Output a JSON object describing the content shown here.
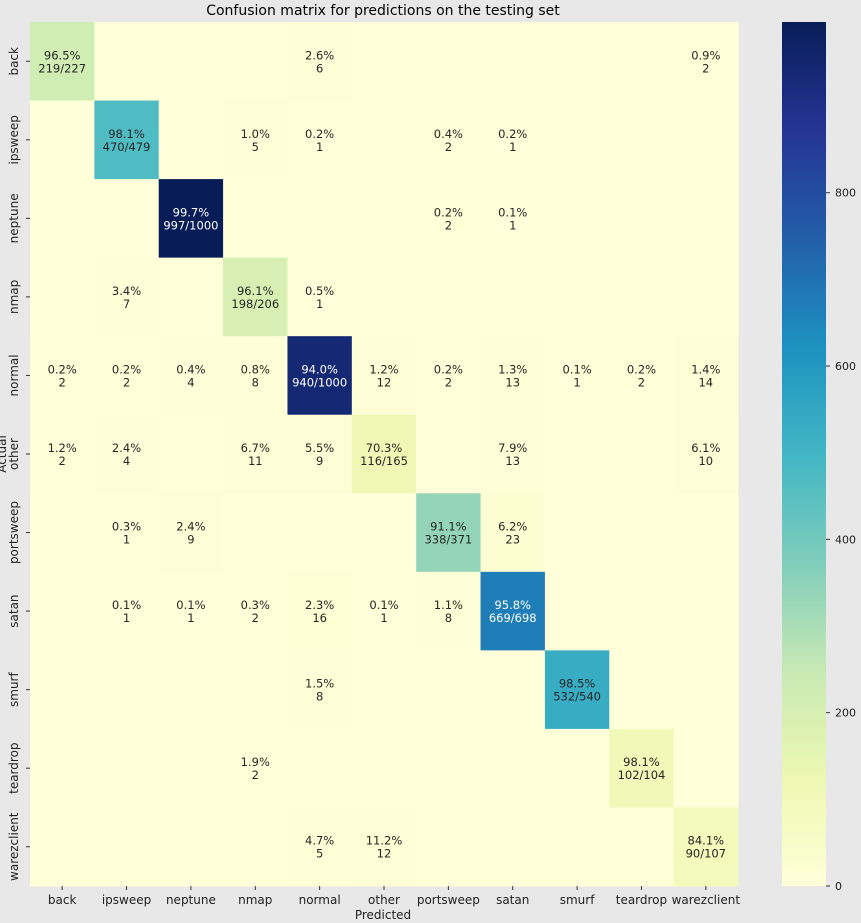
{
  "chart_data": {
    "type": "heatmap",
    "title": "Confusion matrix for predictions on the testing set",
    "xlabel": "Predicted",
    "ylabel": "Actual",
    "x_categories": [
      "back",
      "ipsweep",
      "neptune",
      "nmap",
      "normal",
      "other",
      "portsweep",
      "satan",
      "smurf",
      "teardrop",
      "warezclient"
    ],
    "y_categories": [
      "back",
      "ipsweep",
      "neptune",
      "nmap",
      "normal",
      "other",
      "portsweep",
      "satan",
      "smurf",
      "teardrop",
      "warezclient"
    ],
    "cells": [
      {
        "row": "back",
        "col": "back",
        "count": 219,
        "total": 227,
        "percent": "96.5%",
        "label": "219/227"
      },
      {
        "row": "back",
        "col": "normal",
        "count": 6,
        "percent": "2.6%",
        "label": "6"
      },
      {
        "row": "back",
        "col": "warezclient",
        "count": 2,
        "percent": "0.9%",
        "label": "2"
      },
      {
        "row": "ipsweep",
        "col": "ipsweep",
        "count": 470,
        "total": 479,
        "percent": "98.1%",
        "label": "470/479"
      },
      {
        "row": "ipsweep",
        "col": "nmap",
        "count": 5,
        "percent": "1.0%",
        "label": "5"
      },
      {
        "row": "ipsweep",
        "col": "normal",
        "count": 1,
        "percent": "0.2%",
        "label": "1"
      },
      {
        "row": "ipsweep",
        "col": "portsweep",
        "count": 2,
        "percent": "0.4%",
        "label": "2"
      },
      {
        "row": "ipsweep",
        "col": "satan",
        "count": 1,
        "percent": "0.2%",
        "label": "1"
      },
      {
        "row": "neptune",
        "col": "neptune",
        "count": 997,
        "total": 1000,
        "percent": "99.7%",
        "label": "997/1000"
      },
      {
        "row": "neptune",
        "col": "portsweep",
        "count": 2,
        "percent": "0.2%",
        "label": "2"
      },
      {
        "row": "neptune",
        "col": "satan",
        "count": 1,
        "percent": "0.1%",
        "label": "1"
      },
      {
        "row": "nmap",
        "col": "ipsweep",
        "count": 7,
        "percent": "3.4%",
        "label": "7"
      },
      {
        "row": "nmap",
        "col": "nmap",
        "count": 198,
        "total": 206,
        "percent": "96.1%",
        "label": "198/206"
      },
      {
        "row": "nmap",
        "col": "normal",
        "count": 1,
        "percent": "0.5%",
        "label": "1"
      },
      {
        "row": "normal",
        "col": "back",
        "count": 2,
        "percent": "0.2%",
        "label": "2"
      },
      {
        "row": "normal",
        "col": "ipsweep",
        "count": 2,
        "percent": "0.2%",
        "label": "2"
      },
      {
        "row": "normal",
        "col": "neptune",
        "count": 4,
        "percent": "0.4%",
        "label": "4"
      },
      {
        "row": "normal",
        "col": "nmap",
        "count": 8,
        "percent": "0.8%",
        "label": "8"
      },
      {
        "row": "normal",
        "col": "normal",
        "count": 940,
        "total": 1000,
        "percent": "94.0%",
        "label": "940/1000"
      },
      {
        "row": "normal",
        "col": "other",
        "count": 12,
        "percent": "1.2%",
        "label": "12"
      },
      {
        "row": "normal",
        "col": "portsweep",
        "count": 2,
        "percent": "0.2%",
        "label": "2"
      },
      {
        "row": "normal",
        "col": "satan",
        "count": 13,
        "percent": "1.3%",
        "label": "13"
      },
      {
        "row": "normal",
        "col": "smurf",
        "count": 1,
        "percent": "0.1%",
        "label": "1"
      },
      {
        "row": "normal",
        "col": "teardrop",
        "count": 2,
        "percent": "0.2%",
        "label": "2"
      },
      {
        "row": "normal",
        "col": "warezclient",
        "count": 14,
        "percent": "1.4%",
        "label": "14"
      },
      {
        "row": "other",
        "col": "back",
        "count": 2,
        "percent": "1.2%",
        "label": "2"
      },
      {
        "row": "other",
        "col": "ipsweep",
        "count": 4,
        "percent": "2.4%",
        "label": "4"
      },
      {
        "row": "other",
        "col": "nmap",
        "count": 11,
        "percent": "6.7%",
        "label": "11"
      },
      {
        "row": "other",
        "col": "normal",
        "count": 9,
        "percent": "5.5%",
        "label": "9"
      },
      {
        "row": "other",
        "col": "other",
        "count": 116,
        "total": 165,
        "percent": "70.3%",
        "label": "116/165"
      },
      {
        "row": "other",
        "col": "satan",
        "count": 13,
        "percent": "7.9%",
        "label": "13"
      },
      {
        "row": "other",
        "col": "warezclient",
        "count": 10,
        "percent": "6.1%",
        "label": "10"
      },
      {
        "row": "portsweep",
        "col": "ipsweep",
        "count": 1,
        "percent": "0.3%",
        "label": "1"
      },
      {
        "row": "portsweep",
        "col": "neptune",
        "count": 9,
        "percent": "2.4%",
        "label": "9"
      },
      {
        "row": "portsweep",
        "col": "portsweep",
        "count": 338,
        "total": 371,
        "percent": "91.1%",
        "label": "338/371"
      },
      {
        "row": "portsweep",
        "col": "satan",
        "count": 23,
        "percent": "6.2%",
        "label": "23"
      },
      {
        "row": "satan",
        "col": "ipsweep",
        "count": 1,
        "percent": "0.1%",
        "label": "1"
      },
      {
        "row": "satan",
        "col": "neptune",
        "count": 1,
        "percent": "0.1%",
        "label": "1"
      },
      {
        "row": "satan",
        "col": "nmap",
        "count": 2,
        "percent": "0.3%",
        "label": "2"
      },
      {
        "row": "satan",
        "col": "normal",
        "count": 16,
        "percent": "2.3%",
        "label": "16"
      },
      {
        "row": "satan",
        "col": "other",
        "count": 1,
        "percent": "0.1%",
        "label": "1"
      },
      {
        "row": "satan",
        "col": "portsweep",
        "count": 8,
        "percent": "1.1%",
        "label": "8"
      },
      {
        "row": "satan",
        "col": "satan",
        "count": 669,
        "total": 698,
        "percent": "95.8%",
        "label": "669/698"
      },
      {
        "row": "smurf",
        "col": "normal",
        "count": 8,
        "percent": "1.5%",
        "label": "8"
      },
      {
        "row": "smurf",
        "col": "smurf",
        "count": 532,
        "total": 540,
        "percent": "98.5%",
        "label": "532/540"
      },
      {
        "row": "teardrop",
        "col": "nmap",
        "count": 2,
        "percent": "1.9%",
        "label": "2"
      },
      {
        "row": "teardrop",
        "col": "teardrop",
        "count": 102,
        "total": 104,
        "percent": "98.1%",
        "label": "102/104"
      },
      {
        "row": "warezclient",
        "col": "normal",
        "count": 5,
        "percent": "4.7%",
        "label": "5"
      },
      {
        "row": "warezclient",
        "col": "other",
        "count": 12,
        "percent": "11.2%",
        "label": "12"
      },
      {
        "row": "warezclient",
        "col": "warezclient",
        "count": 90,
        "total": 107,
        "percent": "84.1%",
        "label": "90/107"
      }
    ],
    "colorbar": {
      "colormap": "YlGnBu",
      "range": [
        0,
        997
      ],
      "ticks": [
        0,
        200,
        400,
        600,
        800
      ],
      "tick_labels": [
        "0",
        "200",
        "400",
        "600",
        "800"
      ]
    }
  }
}
